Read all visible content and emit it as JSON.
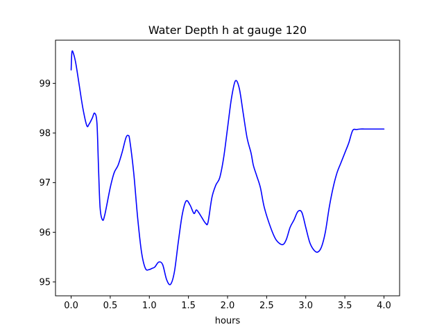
{
  "chart_data": {
    "type": "line",
    "title": "Water Depth h at gauge 120",
    "xlabel": "hours",
    "ylabel": "",
    "xlim": [
      -0.2,
      4.2
    ],
    "ylim": [
      94.72,
      99.87
    ],
    "x_ticks": [
      0.0,
      0.5,
      1.0,
      1.5,
      2.0,
      2.5,
      3.0,
      3.5,
      4.0
    ],
    "x_tick_labels": [
      "0.0",
      "0.5",
      "1.0",
      "1.5",
      "2.0",
      "2.5",
      "3.0",
      "3.5",
      "4.0"
    ],
    "y_ticks": [
      95,
      96,
      97,
      98,
      99
    ],
    "y_tick_labels": [
      "95",
      "96",
      "97",
      "98",
      "99"
    ],
    "grid": false,
    "colors": {
      "line": "#0000ff",
      "axes": "#000000",
      "background": "#ffffff"
    },
    "series": [
      {
        "x": [
          0.0,
          0.01,
          0.03,
          0.06,
          0.1,
          0.15,
          0.2,
          0.23,
          0.27,
          0.3,
          0.33,
          0.35,
          0.37,
          0.4,
          0.43,
          0.5,
          0.55,
          0.6,
          0.65,
          0.7,
          0.73,
          0.75,
          0.8,
          0.85,
          0.9,
          0.95,
          1.0,
          1.03,
          1.07,
          1.12,
          1.17,
          1.22,
          1.27,
          1.32,
          1.37,
          1.42,
          1.47,
          1.52,
          1.57,
          1.6,
          1.63,
          1.67,
          1.72,
          1.75,
          1.8,
          1.85,
          1.9,
          1.95,
          2.0,
          2.05,
          2.1,
          2.15,
          2.2,
          2.25,
          2.3,
          2.33,
          2.37,
          2.42,
          2.47,
          2.55,
          2.62,
          2.7,
          2.75,
          2.8,
          2.85,
          2.9,
          2.95,
          3.0,
          3.05,
          3.1,
          3.15,
          3.2,
          3.25,
          3.3,
          3.35,
          3.4,
          3.45,
          3.5,
          3.55,
          3.6,
          3.65,
          3.7,
          3.75,
          3.8,
          3.85,
          3.9,
          3.95,
          4.0
        ],
        "y": [
          99.27,
          99.63,
          99.6,
          99.4,
          99.0,
          98.5,
          98.15,
          98.18,
          98.3,
          98.4,
          98.2,
          97.3,
          96.5,
          96.25,
          96.35,
          96.9,
          97.2,
          97.35,
          97.6,
          97.9,
          97.95,
          97.85,
          97.2,
          96.3,
          95.6,
          95.27,
          95.25,
          95.27,
          95.3,
          95.4,
          95.35,
          95.05,
          94.95,
          95.2,
          95.8,
          96.35,
          96.63,
          96.55,
          96.38,
          96.45,
          96.4,
          96.3,
          96.18,
          96.2,
          96.7,
          96.95,
          97.1,
          97.5,
          98.1,
          98.7,
          99.05,
          98.9,
          98.4,
          97.9,
          97.6,
          97.35,
          97.15,
          96.9,
          96.5,
          96.1,
          95.85,
          95.75,
          95.85,
          96.1,
          96.25,
          96.42,
          96.4,
          96.1,
          95.8,
          95.65,
          95.6,
          95.7,
          96.0,
          96.5,
          96.9,
          97.2,
          97.4,
          97.6,
          97.8,
          98.05,
          98.07,
          98.08,
          98.08,
          98.08,
          98.08,
          98.08,
          98.08,
          98.08
        ]
      }
    ]
  }
}
